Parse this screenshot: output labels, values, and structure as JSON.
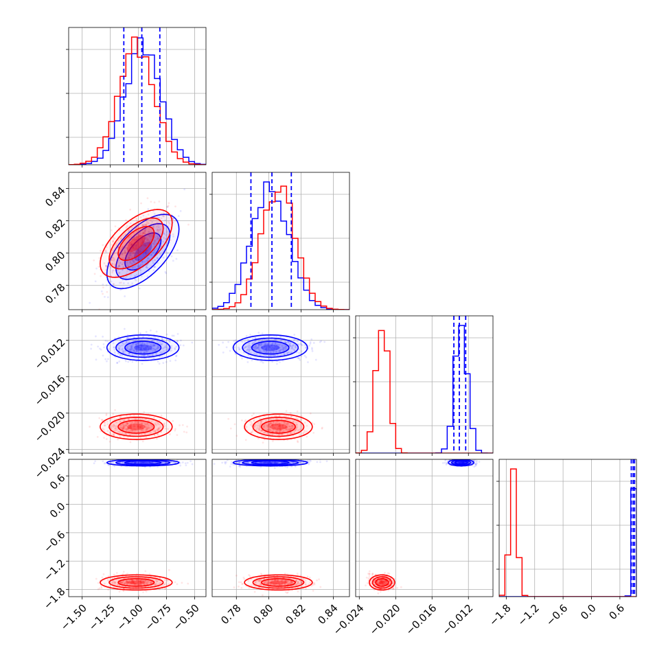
{
  "chart_data": {
    "type": "corner",
    "grid": true,
    "colors": {
      "series_a": "#0000ff",
      "series_b": "#ff0000"
    },
    "parameters": [
      {
        "range": [
          -1.62,
          -0.4
        ],
        "ticks": [
          -1.5,
          -1.25,
          -1.0,
          -0.75,
          -0.5
        ],
        "tick_labels": [
          "−1.50",
          "−1.25",
          "−1.00",
          "−0.75",
          "−0.50"
        ]
      },
      {
        "range": [
          0.765,
          0.85
        ],
        "ticks": [
          0.78,
          0.8,
          0.82,
          0.84
        ],
        "tick_labels": [
          "0.78",
          "0.80",
          "0.82",
          "0.84"
        ]
      },
      {
        "range": [
          -0.0244,
          -0.0093
        ],
        "ticks": [
          -0.024,
          -0.02,
          -0.016,
          -0.012
        ],
        "tick_labels": [
          "−0.024",
          "−0.020",
          "−0.016",
          "−0.012"
        ]
      },
      {
        "range": [
          -1.95,
          0.95
        ],
        "ticks": [
          -1.8,
          -1.2,
          -0.6,
          0.0,
          0.6
        ],
        "tick_labels": [
          "−1.8",
          "−1.2",
          "−0.6",
          "0.0",
          "0.6"
        ]
      }
    ],
    "series": [
      {
        "color": "#0000ff",
        "mean": [
          -0.96,
          0.801,
          -0.0128,
          0.88
        ],
        "std": [
          0.16,
          0.0115,
          0.0007,
          0.035
        ],
        "corr01": 0.6
      },
      {
        "color": "#ff0000",
        "mean": [
          -1.02,
          0.806,
          -0.0215,
          -1.65
        ],
        "std": [
          0.16,
          0.0105,
          0.0007,
          0.08
        ],
        "corr01": 0.6
      }
    ],
    "quantile_lines": {
      "color": "#0000ff",
      "values": [
        [
          -1.13,
          -0.97,
          -0.81
        ],
        [
          0.789,
          0.802,
          0.814
        ],
        [
          -0.0136,
          -0.013,
          -0.0123
        ],
        [
          0.84,
          0.88,
          0.91
        ]
      ]
    }
  }
}
